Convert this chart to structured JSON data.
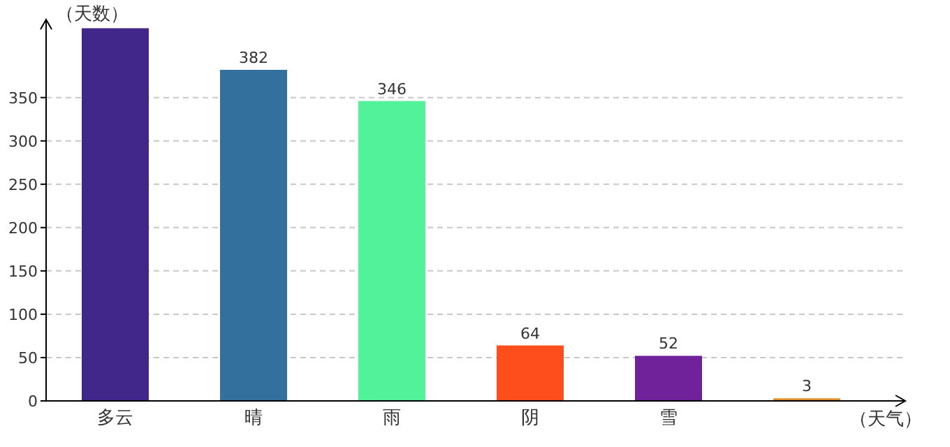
{
  "chart_data": {
    "type": "bar",
    "xlabel": "（天气）",
    "ylabel": "（天数）",
    "categories": [
      "多云",
      "晴",
      "雨",
      "阴",
      "雪",
      null
    ],
    "values": [
      430,
      382,
      346,
      64,
      52,
      3
    ],
    "colors": [
      "#42278a",
      "#33709e",
      "#52f29a",
      "#fd4e1b",
      "#70229a",
      "#e08e2c"
    ],
    "value_labels": [
      null,
      "382",
      "346",
      "64",
      "52",
      "3"
    ],
    "ylim": [
      0,
      440
    ],
    "yticks": [
      0,
      50,
      100,
      150,
      200,
      250,
      300,
      350
    ],
    "grid": "y"
  }
}
